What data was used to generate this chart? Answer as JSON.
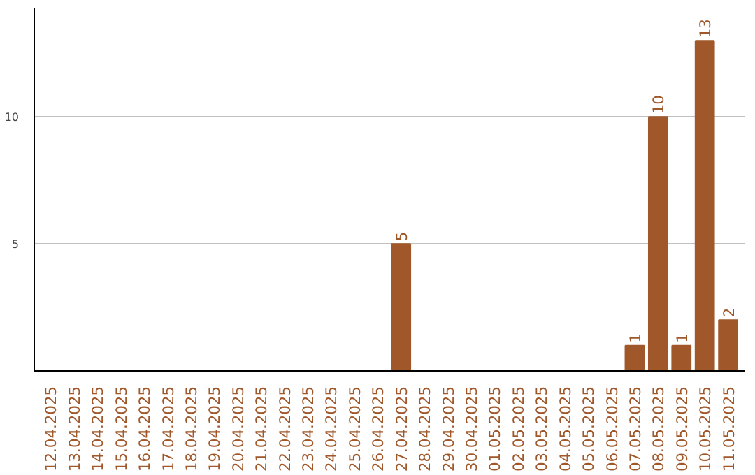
{
  "chart_data": {
    "type": "bar",
    "categories": [
      "12.04.2025",
      "13.04.2025",
      "14.04.2025",
      "15.04.2025",
      "16.04.2025",
      "17.04.2025",
      "18.04.2025",
      "19.04.2025",
      "20.04.2025",
      "21.04.2025",
      "22.04.2025",
      "23.04.2025",
      "24.04.2025",
      "25.04.2025",
      "26.04.2025",
      "27.04.2025",
      "28.04.2025",
      "29.04.2025",
      "30.04.2025",
      "01.05.2025",
      "02.05.2025",
      "03.05.2025",
      "04.05.2025",
      "05.05.2025",
      "06.05.2025",
      "07.05.2025",
      "08.05.2025",
      "09.05.2025",
      "10.05.2025",
      "11.05.2025"
    ],
    "values": [
      0,
      0,
      0,
      0,
      0,
      0,
      0,
      0,
      0,
      0,
      0,
      0,
      0,
      0,
      0,
      5,
      0,
      0,
      0,
      0,
      0,
      0,
      0,
      0,
      0,
      1,
      10,
      1,
      13,
      2
    ],
    "value_labels": [
      null,
      null,
      null,
      null,
      null,
      null,
      null,
      null,
      null,
      null,
      null,
      null,
      null,
      null,
      null,
      "5",
      null,
      null,
      null,
      null,
      null,
      null,
      null,
      null,
      null,
      "1",
      "10",
      "1",
      "13",
      "2"
    ],
    "color": "#a0582a",
    "ylim": [
      0,
      14.3
    ],
    "yticks": [
      5,
      10
    ],
    "grid": "y"
  }
}
